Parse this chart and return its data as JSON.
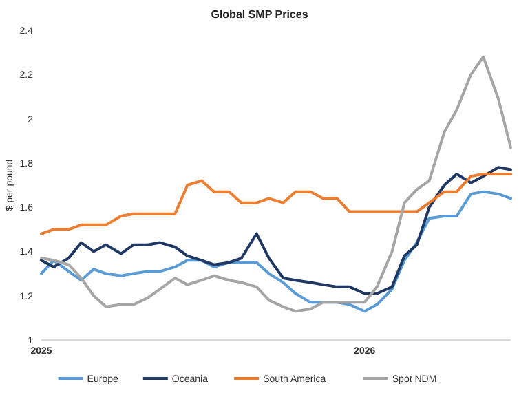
{
  "chart_data": {
    "type": "line",
    "title": "Global SMP Prices",
    "ylabel": "$ per pound",
    "x": [
      "2025-01-01",
      "2025-01-15",
      "2025-02-01",
      "2025-02-15",
      "2025-03-01",
      "2025-03-15",
      "2025-04-01",
      "2025-04-15",
      "2025-05-01",
      "2025-05-15",
      "2025-06-01",
      "2025-06-15",
      "2025-07-01",
      "2025-07-15",
      "2025-08-01",
      "2025-08-15",
      "2025-09-01",
      "2025-09-15",
      "2025-10-01",
      "2025-10-15",
      "2025-11-01",
      "2025-11-15",
      "2025-12-01",
      "2025-12-15",
      "2026-01-01",
      "2026-01-15",
      "2026-02-01",
      "2026-02-15",
      "2026-03-01",
      "2026-03-15",
      "2026-04-01",
      "2026-04-15",
      "2026-05-01",
      "2026-05-15",
      "2026-06-01",
      "2026-06-15"
    ],
    "xlim": [
      "2025-01-01",
      "2026-06-15"
    ],
    "xticks": [
      {
        "value": "2025-01-01",
        "label": "2025"
      },
      {
        "value": "2026-01-01",
        "label": "2026"
      }
    ],
    "ylim": [
      1,
      2.4
    ],
    "yticks": [
      1,
      1.2,
      1.4,
      1.6,
      1.8,
      2,
      2.2,
      2.4
    ],
    "legend": "bottom",
    "grid": false,
    "line_style": "solid",
    "marker": "none",
    "series": [
      {
        "name": "Europe",
        "color": "#5b9bd5",
        "values": [
          1.3,
          1.36,
          1.31,
          1.27,
          1.32,
          1.3,
          1.29,
          1.3,
          1.31,
          1.31,
          1.33,
          1.36,
          1.36,
          1.33,
          1.35,
          1.35,
          1.35,
          1.3,
          1.26,
          1.21,
          1.17,
          1.17,
          1.17,
          1.16,
          1.13,
          1.16,
          1.23,
          1.36,
          1.44,
          1.55,
          1.56,
          1.56,
          1.66,
          1.67,
          1.66,
          1.64
        ]
      },
      {
        "name": "Oceania",
        "color": "#1f3864",
        "values": [
          1.36,
          1.33,
          1.37,
          1.44,
          1.4,
          1.43,
          1.39,
          1.43,
          1.43,
          1.44,
          1.42,
          1.38,
          1.36,
          1.34,
          1.35,
          1.37,
          1.48,
          1.37,
          1.28,
          1.27,
          1.26,
          1.25,
          1.24,
          1.24,
          1.21,
          1.21,
          1.24,
          1.38,
          1.43,
          1.6,
          1.7,
          1.75,
          1.71,
          1.74,
          1.78,
          1.77
        ]
      },
      {
        "name": "South America",
        "color": "#ed7d31",
        "values": [
          1.48,
          1.5,
          1.5,
          1.52,
          1.52,
          1.52,
          1.56,
          1.57,
          1.57,
          1.57,
          1.57,
          1.7,
          1.72,
          1.67,
          1.67,
          1.62,
          1.62,
          1.64,
          1.62,
          1.67,
          1.67,
          1.64,
          1.64,
          1.58,
          1.58,
          1.58,
          1.58,
          1.58,
          1.58,
          1.62,
          1.67,
          1.67,
          1.74,
          1.75,
          1.75,
          1.75
        ]
      },
      {
        "name": "Spot NDM",
        "color": "#a5a5a5",
        "values": [
          1.37,
          1.36,
          1.34,
          1.28,
          1.2,
          1.15,
          1.16,
          1.16,
          1.19,
          1.23,
          1.28,
          1.25,
          1.27,
          1.29,
          1.27,
          1.26,
          1.24,
          1.18,
          1.15,
          1.13,
          1.14,
          1.17,
          1.17,
          1.17,
          1.17,
          1.24,
          1.4,
          1.62,
          1.68,
          1.72,
          1.94,
          2.04,
          2.2,
          2.28,
          2.09,
          1.87
        ]
      }
    ]
  }
}
